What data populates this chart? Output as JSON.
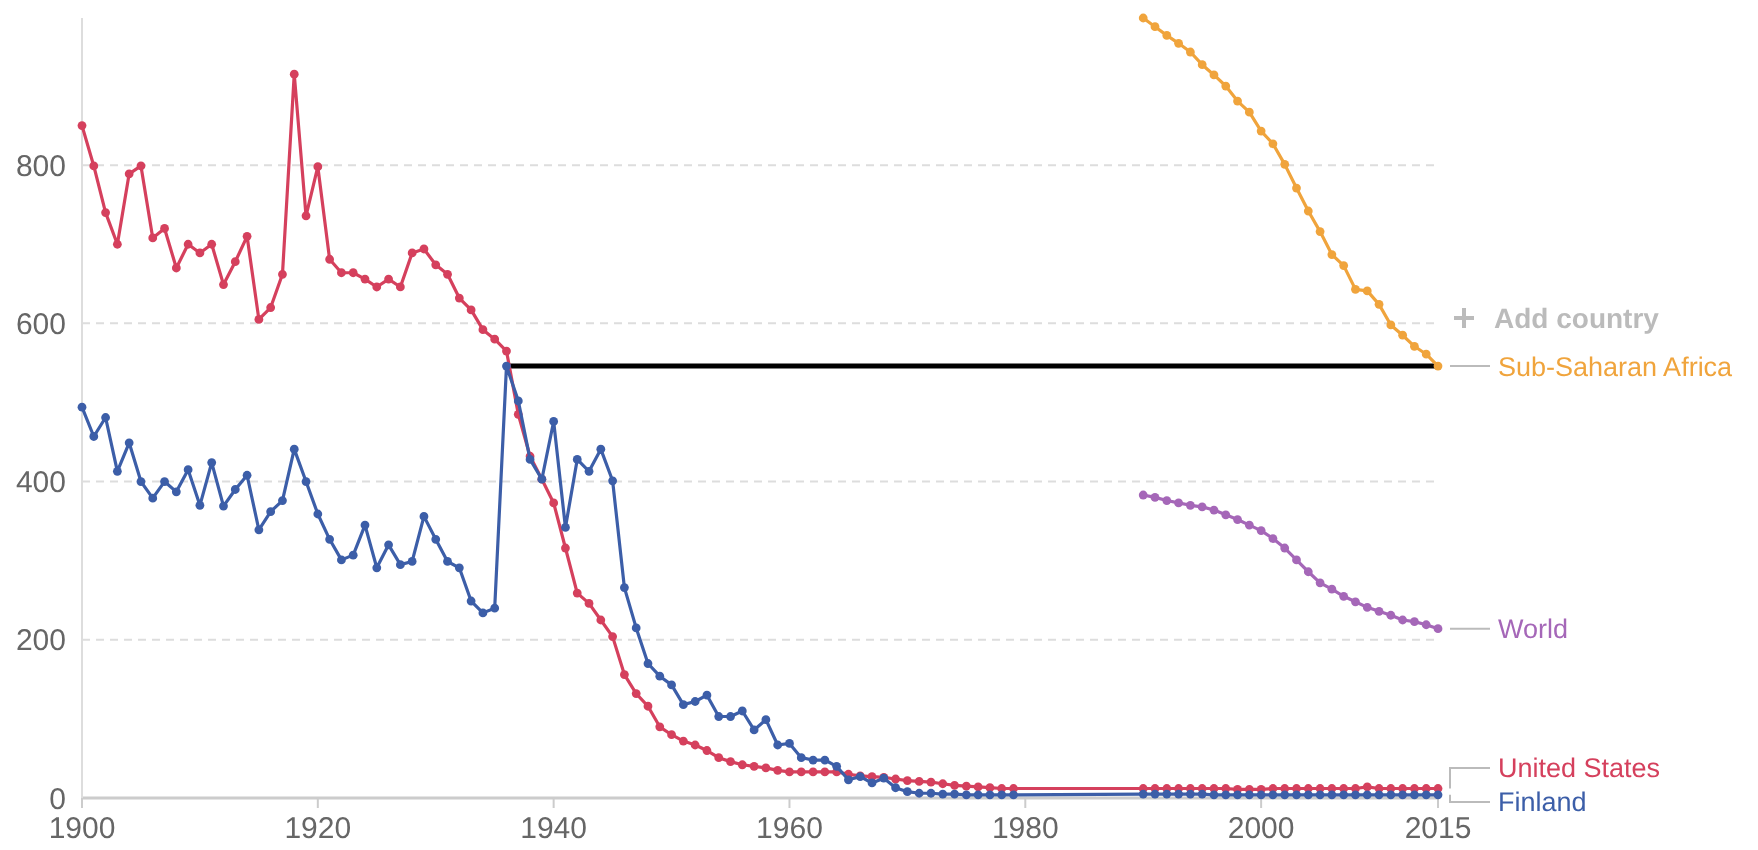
{
  "chart_data": {
    "type": "line",
    "ylim": [
      0,
      986
    ],
    "xlim": [
      1900,
      2015
    ],
    "xticks": [
      1900,
      1920,
      1940,
      1960,
      1980,
      2000,
      2015
    ],
    "yticks": [
      0,
      200,
      400,
      600,
      800
    ],
    "grid": "y",
    "legend": "right",
    "marker": "circle",
    "annotations": [
      "Add country"
    ],
    "series": [
      {
        "name": "United States",
        "color": "#d5405d",
        "x": [
          1900,
          1901,
          1902,
          1903,
          1904,
          1905,
          1906,
          1907,
          1908,
          1909,
          1910,
          1911,
          1912,
          1913,
          1914,
          1915,
          1916,
          1917,
          1918,
          1919,
          1920,
          1921,
          1922,
          1923,
          1924,
          1925,
          1926,
          1927,
          1928,
          1929,
          1930,
          1931,
          1932,
          1933,
          1934,
          1935,
          1936,
          1937,
          1938,
          1939,
          1940,
          1941,
          1942,
          1943,
          1944,
          1945,
          1946,
          1947,
          1948,
          1949,
          1950,
          1951,
          1952,
          1953,
          1954,
          1955,
          1956,
          1957,
          1958,
          1959,
          1960,
          1961,
          1962,
          1963,
          1964,
          1965,
          1966,
          1967,
          1968,
          1969,
          1970,
          1971,
          1972,
          1973,
          1974,
          1975,
          1976,
          1977,
          1978,
          1979,
          1990,
          1991,
          1992,
          1993,
          1994,
          1995,
          1996,
          1997,
          1998,
          1999,
          2000,
          2001,
          2002,
          2003,
          2004,
          2005,
          2006,
          2007,
          2008,
          2009,
          2010,
          2011,
          2012,
          2013,
          2014,
          2015
        ],
        "values": [
          850,
          799,
          740,
          700,
          789,
          799,
          708,
          720,
          670,
          700,
          689,
          700,
          649,
          678,
          710,
          605,
          620,
          662,
          915,
          736,
          798,
          681,
          664,
          664,
          656,
          646,
          656,
          646,
          689,
          694,
          674,
          662,
          632,
          617,
          592,
          580,
          565,
          485,
          432,
          403,
          373,
          316,
          259,
          246,
          225,
          204,
          156,
          132,
          116,
          90,
          80,
          72,
          67,
          60,
          51,
          46,
          42,
          40,
          38,
          35,
          33,
          33,
          33,
          33,
          33,
          30,
          28,
          27,
          26,
          24,
          22,
          21,
          20,
          18,
          16,
          15,
          14,
          13,
          12,
          12,
          12,
          12,
          12,
          12,
          12,
          12,
          12,
          12,
          11,
          11,
          11,
          12,
          12,
          12,
          12,
          12,
          12,
          12,
          12,
          14,
          12,
          12,
          12,
          12,
          12,
          12
        ]
      },
      {
        "name": "Finland",
        "color": "#3c5ea8",
        "x": [
          1900,
          1901,
          1902,
          1903,
          1904,
          1905,
          1906,
          1907,
          1908,
          1909,
          1910,
          1911,
          1912,
          1913,
          1914,
          1915,
          1916,
          1917,
          1918,
          1919,
          1920,
          1921,
          1922,
          1923,
          1924,
          1925,
          1926,
          1927,
          1928,
          1929,
          1930,
          1931,
          1932,
          1933,
          1934,
          1935,
          1936,
          1937,
          1938,
          1939,
          1940,
          1941,
          1942,
          1943,
          1944,
          1945,
          1946,
          1947,
          1948,
          1949,
          1950,
          1951,
          1952,
          1953,
          1954,
          1955,
          1956,
          1957,
          1958,
          1959,
          1960,
          1961,
          1962,
          1963,
          1964,
          1965,
          1966,
          1967,
          1968,
          1969,
          1970,
          1971,
          1972,
          1973,
          1974,
          1975,
          1976,
          1977,
          1978,
          1979,
          1990,
          1991,
          1992,
          1993,
          1994,
          1995,
          1996,
          1997,
          1998,
          1999,
          2000,
          2001,
          2002,
          2003,
          2004,
          2005,
          2006,
          2007,
          2008,
          2009,
          2010,
          2011,
          2012,
          2013,
          2014,
          2015
        ],
        "values": [
          494,
          457,
          481,
          413,
          449,
          400,
          379,
          400,
          387,
          415,
          370,
          424,
          369,
          390,
          408,
          339,
          362,
          376,
          441,
          400,
          359,
          327,
          301,
          307,
          345,
          291,
          320,
          295,
          299,
          356,
          327,
          299,
          291,
          249,
          234,
          240,
          546,
          502,
          428,
          403,
          476,
          342,
          428,
          413,
          441,
          401,
          266,
          215,
          170,
          154,
          143,
          118,
          122,
          130,
          103,
          103,
          110,
          86,
          99,
          67,
          69,
          51,
          48,
          48,
          40,
          23,
          27,
          19,
          25,
          13,
          8,
          6,
          6,
          5,
          5,
          4,
          4,
          4,
          4,
          4,
          5,
          5,
          5,
          5,
          5,
          5,
          4,
          4,
          4,
          4,
          4,
          4,
          4,
          4,
          4,
          4,
          4,
          4,
          4,
          4,
          4,
          4,
          4,
          4,
          4,
          4
        ]
      },
      {
        "name": "Sub-Saharan Africa",
        "color": "#f0a43c",
        "x": [
          1990,
          1991,
          1992,
          1993,
          1994,
          1995,
          1996,
          1997,
          1998,
          1999,
          2000,
          2001,
          2002,
          2003,
          2004,
          2005,
          2006,
          2007,
          2008,
          2009,
          2010,
          2011,
          2012,
          2013,
          2014,
          2015
        ],
        "values": [
          986,
          975,
          964,
          954,
          943,
          927,
          914,
          900,
          881,
          867,
          843,
          827,
          801,
          771,
          742,
          716,
          687,
          673,
          643,
          641,
          624,
          598,
          585,
          571,
          561,
          546
        ]
      },
      {
        "name": "World",
        "color": "#a567b8",
        "x": [
          1990,
          1991,
          1992,
          1993,
          1994,
          1995,
          1996,
          1997,
          1998,
          1999,
          2000,
          2001,
          2002,
          2003,
          2004,
          2005,
          2006,
          2007,
          2008,
          2009,
          2010,
          2011,
          2012,
          2013,
          2014,
          2015
        ],
        "values": [
          383,
          380,
          376,
          373,
          370,
          368,
          364,
          358,
          352,
          345,
          338,
          328,
          316,
          301,
          286,
          272,
          264,
          255,
          248,
          241,
          236,
          231,
          225,
          223,
          219,
          214
        ]
      },
      {
        "type": "line",
        "color": "#000000",
        "marker": "none",
        "x": [
          1936,
          2015
        ],
        "values": [
          546,
          546
        ]
      }
    ]
  }
}
